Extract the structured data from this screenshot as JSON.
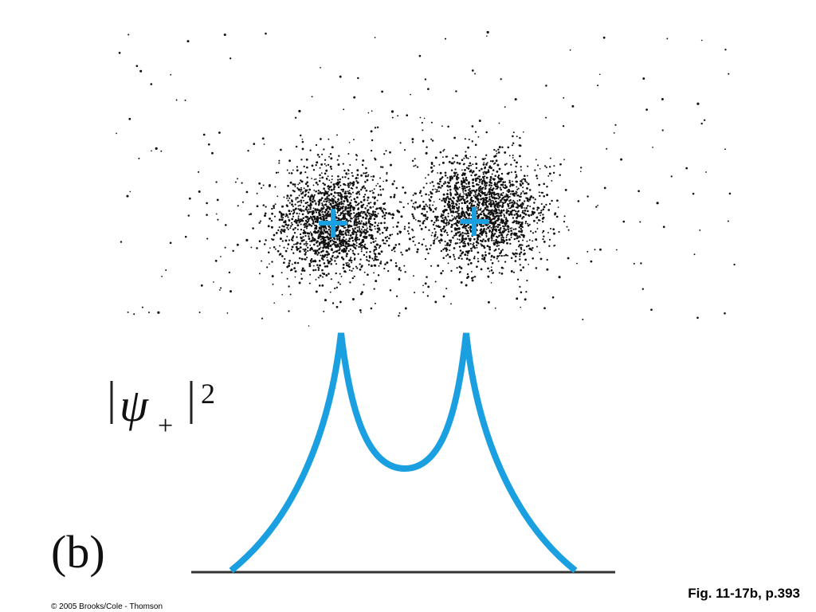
{
  "figure": {
    "panel_label": "(b)",
    "density_label": {
      "symbol": "ψ",
      "subscript": "+",
      "superscript": "2"
    },
    "caption": "Fig. 11-17b, p.393",
    "copyright": "© 2005 Brooks/Cole - Thomson"
  }
}
